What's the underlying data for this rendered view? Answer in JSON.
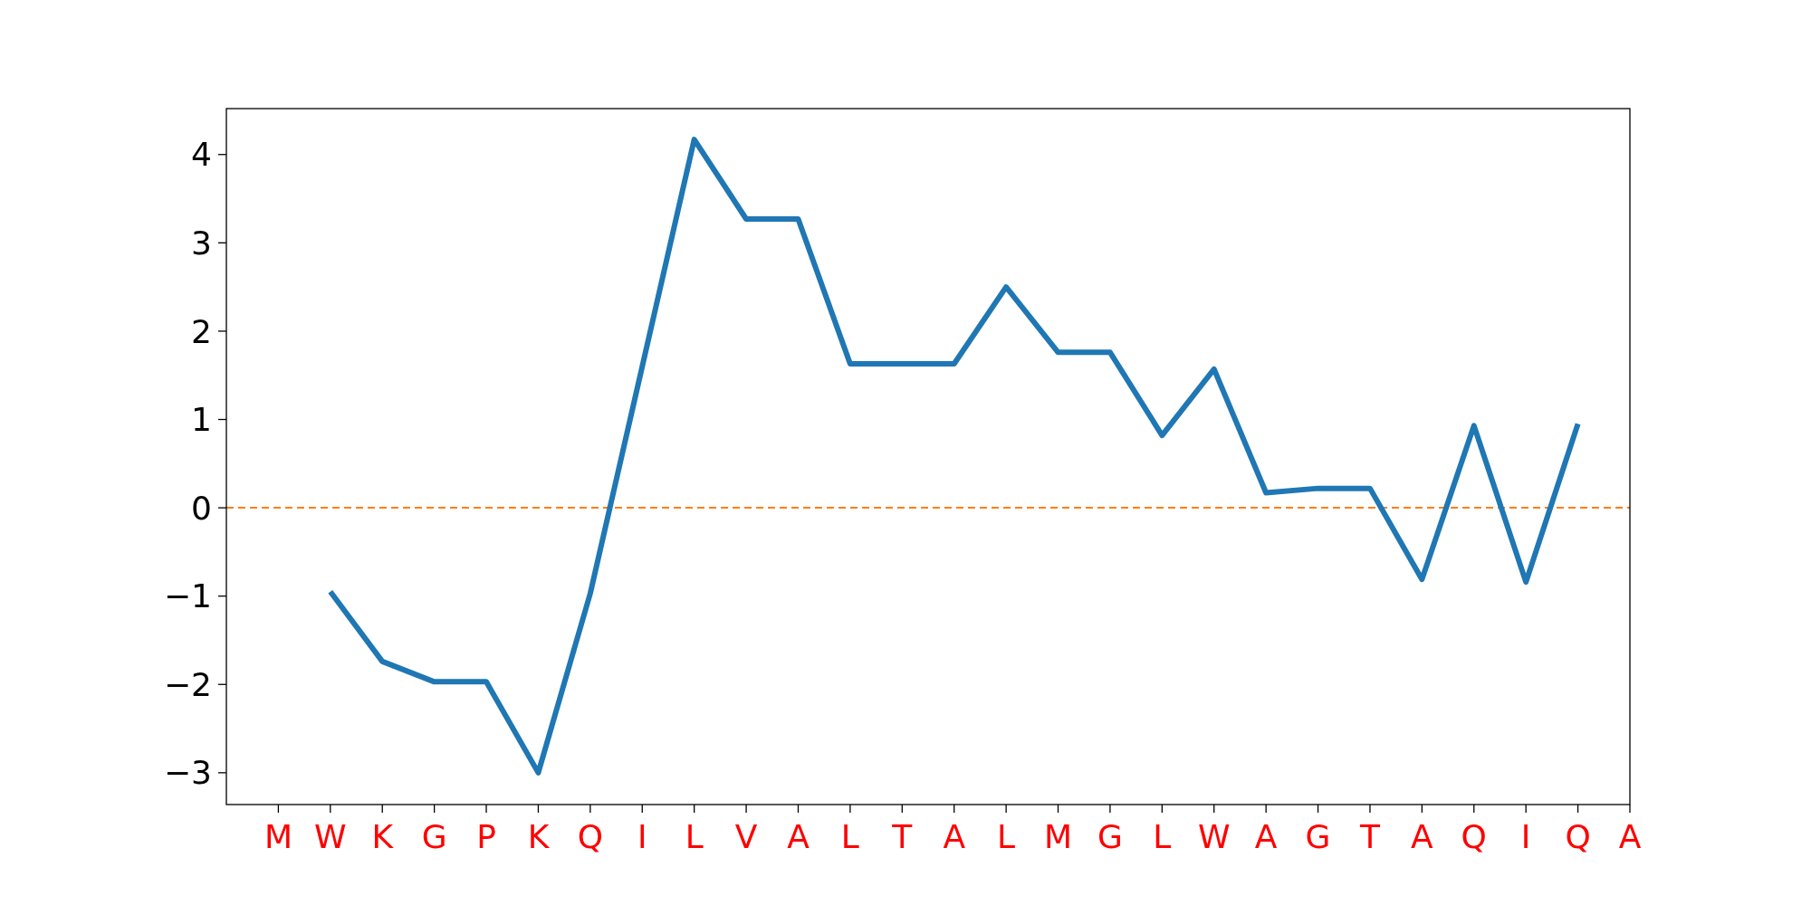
{
  "chart_data": {
    "type": "line",
    "categories": [
      "M",
      "W",
      "K",
      "G",
      "P",
      "K",
      "Q",
      "I",
      "L",
      "V",
      "A",
      "L",
      "T",
      "A",
      "L",
      "M",
      "G",
      "L",
      "W",
      "A",
      "G",
      "T",
      "A",
      "Q",
      "I",
      "Q",
      "A"
    ],
    "series": [
      {
        "color": "#1f77b4",
        "values": [
          null,
          -0.95,
          -1.74,
          -1.97,
          -1.97,
          -3.0,
          -0.97,
          1.6,
          4.17,
          3.27,
          3.27,
          1.63,
          1.63,
          1.63,
          2.5,
          1.76,
          1.76,
          0.82,
          1.57,
          0.17,
          0.22,
          0.22,
          -0.81,
          0.93,
          -0.84,
          0.95,
          null
        ]
      }
    ],
    "ylim": [
      -3.36,
      4.52
    ],
    "yticks": [
      {
        "value": -3,
        "label": "−3"
      },
      {
        "value": -2,
        "label": "−2"
      },
      {
        "value": -1,
        "label": "−1"
      },
      0,
      1,
      2,
      3,
      4
    ],
    "ref_lines": [
      {
        "axis": "y",
        "value": 0,
        "color": "#ff7f0e",
        "line_style": "dashed"
      }
    ],
    "marker": "none",
    "line_style": "solid"
  }
}
